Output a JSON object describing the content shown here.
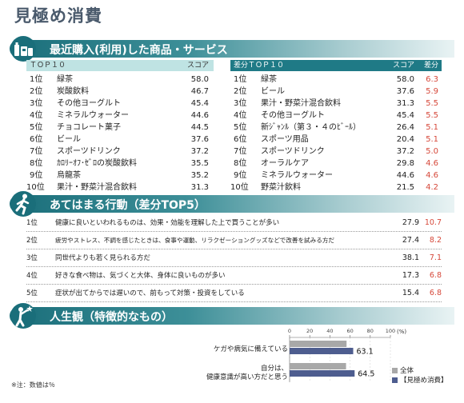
{
  "page_title": "見極め消費",
  "colors": {
    "teal": "#1f7a86",
    "light_teal": "#bfe3e3",
    "diff_red": "#d6483a",
    "bar_gray": "#a8a8a8",
    "bar_purple": "#4e5d8f"
  },
  "section1": {
    "title": "最近購入(利用)した商品・サービス",
    "icon": "shopping-items-icon",
    "table_a": {
      "header_label": "ＴＯＰ１０",
      "header_score": "スコア",
      "rows": [
        {
          "rank": "1位",
          "name": "緑茶",
          "score": "58.0"
        },
        {
          "rank": "2位",
          "name": "炭酸飲料",
          "score": "46.7"
        },
        {
          "rank": "3位",
          "name": "その他ヨーグルト",
          "score": "45.4"
        },
        {
          "rank": "4位",
          "name": "ミネラルウォーター",
          "score": "44.6"
        },
        {
          "rank": "5位",
          "name": "チョコレート菓子",
          "score": "44.5"
        },
        {
          "rank": "6位",
          "name": "ビール",
          "score": "37.6"
        },
        {
          "rank": "7位",
          "name": "スポーツドリンク",
          "score": "37.2"
        },
        {
          "rank": "8位",
          "name": "ｶﾛﾘｰｵﾌ･ｾﾞﾛの炭酸飲料",
          "score": "35.5"
        },
        {
          "rank": "9位",
          "name": "烏龍茶",
          "score": "35.2"
        },
        {
          "rank": "10位",
          "name": "果汁・野菜汁混合飲料",
          "score": "31.3"
        }
      ]
    },
    "table_b": {
      "header_label": "差分ＴＯＰ１０",
      "header_score": "スコア",
      "header_diff": "差分",
      "rows": [
        {
          "rank": "1位",
          "name": "緑茶",
          "score": "58.0",
          "diff": "6.3"
        },
        {
          "rank": "2位",
          "name": "ビール",
          "score": "37.6",
          "diff": "5.9"
        },
        {
          "rank": "3位",
          "name": "果汁・野菜汁混合飲料",
          "score": "31.3",
          "diff": "5.5"
        },
        {
          "rank": "4位",
          "name": "その他ヨーグルト",
          "score": "45.4",
          "diff": "5.5"
        },
        {
          "rank": "5位",
          "name": "新ｼﾞｬﾝﾙ（第３・４のﾋﾞｰﾙ）",
          "score": "26.4",
          "diff": "5.1"
        },
        {
          "rank": "6位",
          "name": "スポーツ用品",
          "score": "20.4",
          "diff": "5.1"
        },
        {
          "rank": "7位",
          "name": "スポーツドリンク",
          "score": "37.2",
          "diff": "5.0"
        },
        {
          "rank": "8位",
          "name": "オーラルケア",
          "score": "29.8",
          "diff": "4.6"
        },
        {
          "rank": "9位",
          "name": "ミネラルウォーター",
          "score": "44.6",
          "diff": "4.6"
        },
        {
          "rank": "10位",
          "name": "野菜汁飲料",
          "score": "21.5",
          "diff": "4.2"
        }
      ]
    }
  },
  "section2": {
    "title": "あてはまる行動（差分TOP5）",
    "icon": "running-person-icon",
    "rows": [
      {
        "rank": "1位",
        "text": "健康に良いといわれるものは、効果・効能を理解した上で買うことが多い",
        "score": "27.9",
        "diff": "10.7"
      },
      {
        "rank": "2位",
        "text": "疲労やストレス、不調を感じたときは、食事や運動、リラクゼーショングッズなどで改善を試みる方だ",
        "score": "27.4",
        "diff": "8.2"
      },
      {
        "rank": "3位",
        "text": "同世代よりも若く見られる方だ",
        "score": "38.1",
        "diff": "7.1"
      },
      {
        "rank": "4位",
        "text": "好きな食べ物は、気づくと大体、身体に良いものが多い",
        "score": "17.3",
        "diff": "6.8"
      },
      {
        "rank": "5位",
        "text": "症状が出てからでは遅いので、前もって対策・投資をしている",
        "score": "15.4",
        "diff": "6.8"
      }
    ]
  },
  "section3": {
    "title": "人生観（特徴的なもの）",
    "icon": "pointing-person-icon"
  },
  "footnote": "※注：数値は％",
  "chart_data": {
    "type": "bar",
    "orientation": "horizontal",
    "xlim": [
      0,
      100
    ],
    "x_ticks": [
      "0",
      "20",
      "40",
      "60",
      "80",
      "100"
    ],
    "unit_label": "(%)",
    "categories": [
      {
        "lines": [
          "ケガや病気に備えている"
        ]
      },
      {
        "lines": [
          "自分は、",
          "健康意識が高い方だと思う"
        ]
      }
    ],
    "series": [
      {
        "name": "全体",
        "values": [
          56.5,
          56.0
        ]
      },
      {
        "name": "【見極め消費】",
        "values": [
          63.1,
          64.5
        ],
        "labels": [
          "63.1",
          "64.5"
        ]
      }
    ],
    "legend_position": "bottom-right"
  }
}
